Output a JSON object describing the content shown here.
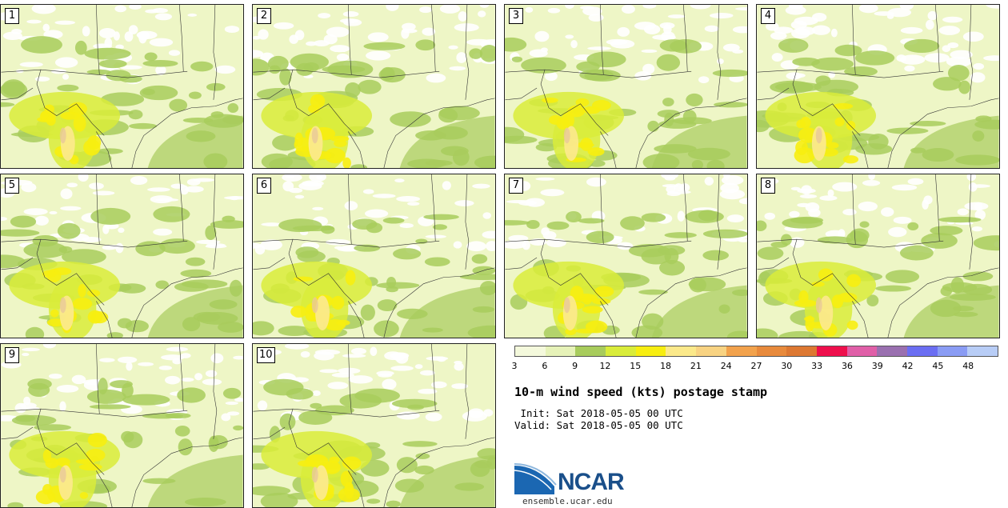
{
  "stamps": [
    {
      "label": "1"
    },
    {
      "label": "2"
    },
    {
      "label": "3"
    },
    {
      "label": "4"
    },
    {
      "label": "5"
    },
    {
      "label": "6"
    },
    {
      "label": "7"
    },
    {
      "label": "8"
    },
    {
      "label": "9"
    },
    {
      "label": "10"
    }
  ],
  "legend": {
    "ticks": [
      "3",
      "6",
      "9",
      "12",
      "15",
      "18",
      "21",
      "24",
      "27",
      "30",
      "33",
      "36",
      "39",
      "42",
      "45",
      "48"
    ],
    "colors": [
      "#f4f9dc",
      "#e6f2b8",
      "#a8cc5c",
      "#d9ec3a",
      "#f7ee10",
      "#fbe98a",
      "#f8d382",
      "#f2a24c",
      "#e88a3c",
      "#dd7832",
      "#ee0f4c",
      "#e05fa8",
      "#9a70b0",
      "#6b6ef2",
      "#8a9cf4",
      "#b8cdf6"
    ]
  },
  "title": "10-m wind speed (kts) postage stamp",
  "init": " Init: Sat 2018-05-05 00 UTC",
  "valid": "Valid: Sat 2018-05-05 00 UTC",
  "logo": {
    "name": "NCAR",
    "url": "ensemble.ucar.edu"
  }
}
